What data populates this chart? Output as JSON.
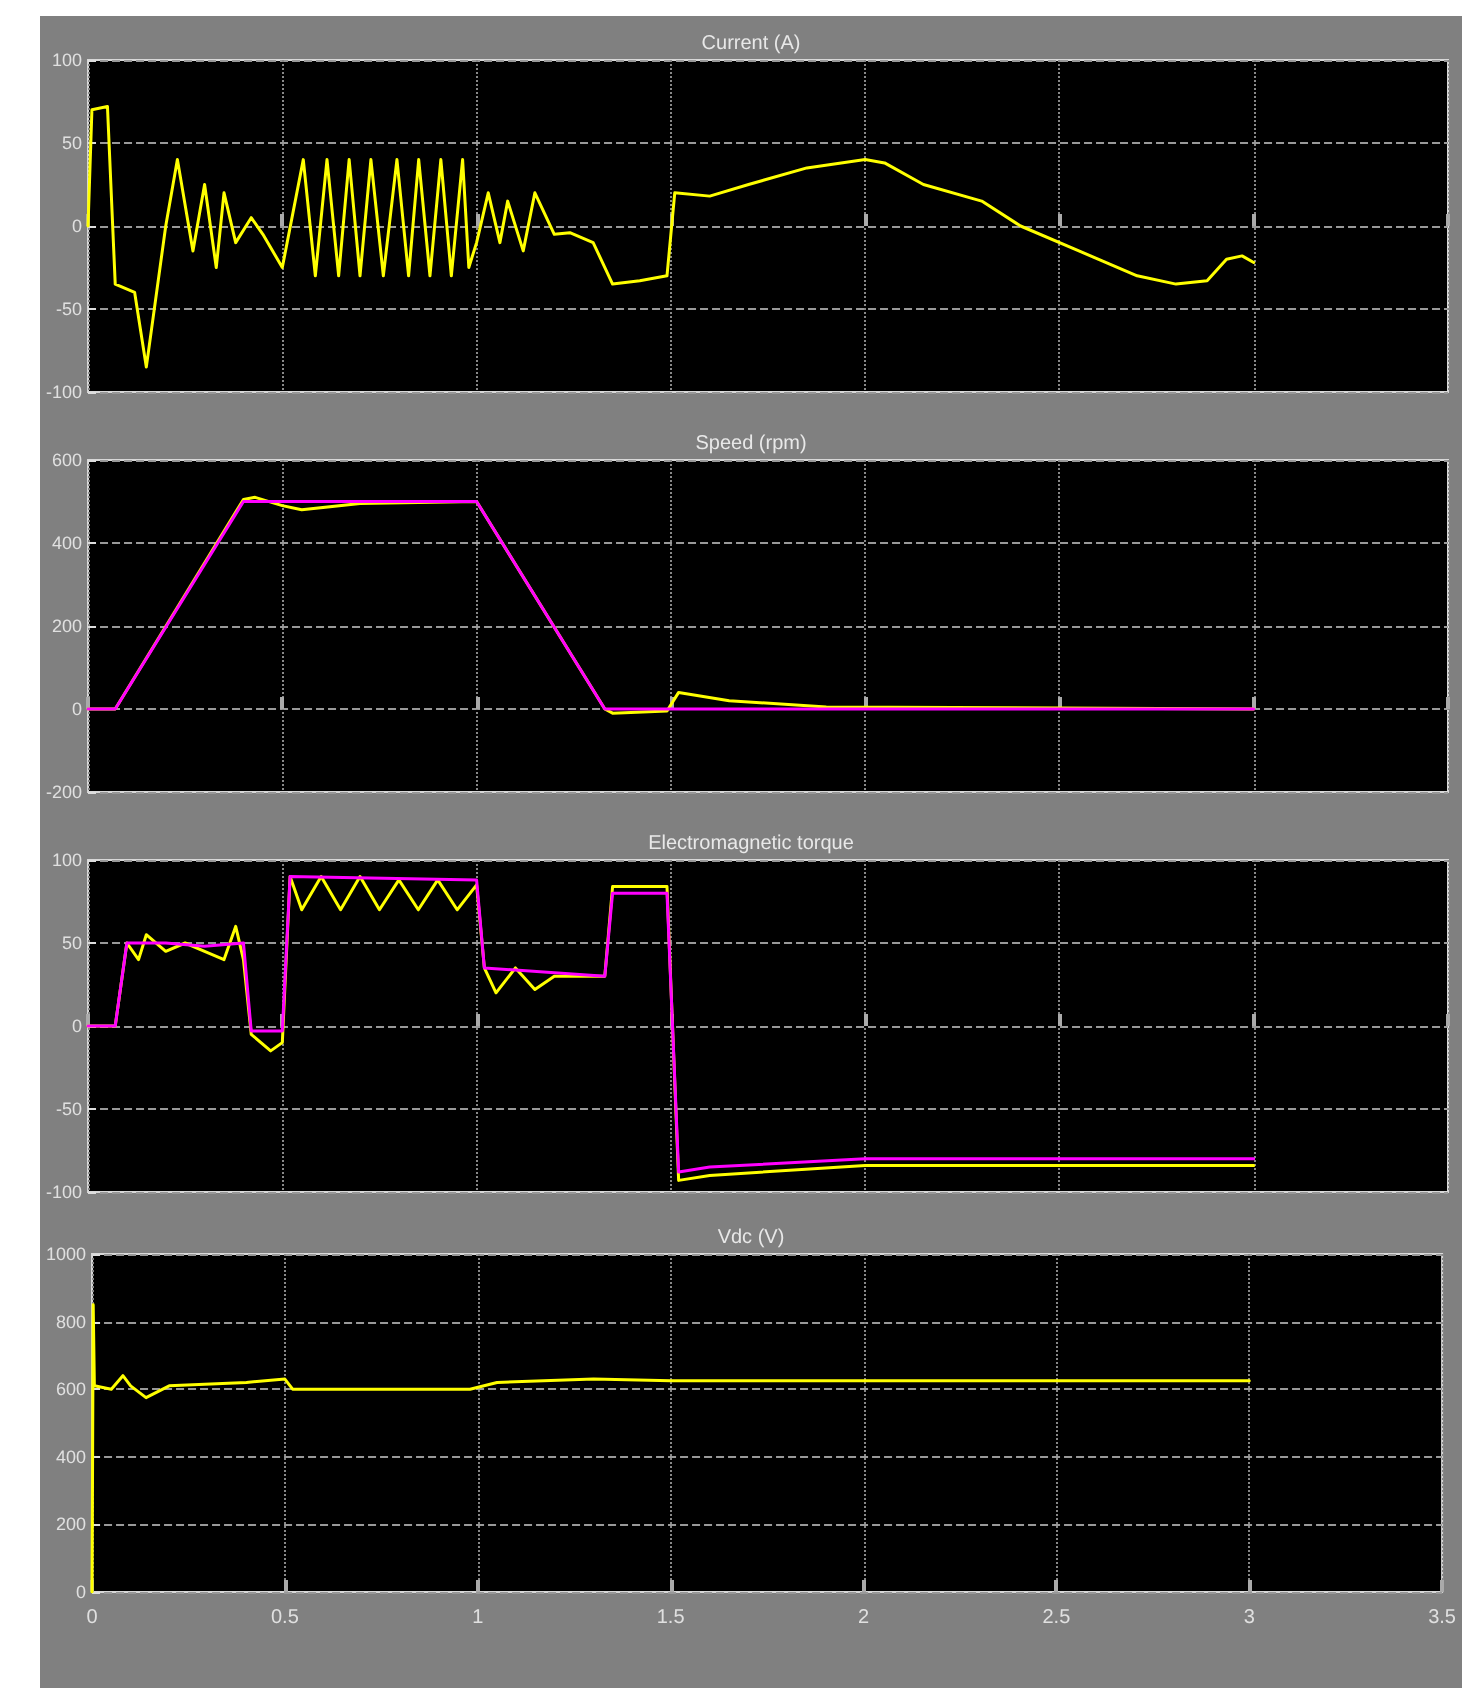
{
  "chart_data": [
    {
      "type": "line",
      "title": "Current (A)",
      "xlim": [
        0,
        3.5
      ],
      "xticks": [
        0,
        0.5,
        1,
        1.5,
        2,
        2.5,
        3,
        3.5
      ],
      "ylim": [
        -100,
        100
      ],
      "yticks": [
        -100,
        -50,
        0,
        50,
        100
      ],
      "grid": true,
      "marker": "none",
      "line_style": "solid",
      "tick_labels": "y",
      "series": [
        {
          "color": "#ffff00",
          "x": [
            0,
            0.01,
            0.05,
            0.07,
            0.12,
            0.15,
            0.2,
            0.23,
            0.27,
            0.3,
            0.33,
            0.35,
            0.38,
            0.42,
            0.45,
            0.5,
            0.554,
            0.585,
            0.615,
            0.645,
            0.672,
            0.7,
            0.728,
            0.76,
            0.795,
            0.825,
            0.851,
            0.88,
            0.908,
            0.935,
            0.964,
            0.98,
            1.0,
            1.03,
            1.06,
            1.08,
            1.12,
            1.15,
            1.2,
            1.24,
            1.3,
            1.35,
            1.42,
            1.49,
            1.51,
            1.6,
            1.7,
            1.85,
            2.0,
            2.05,
            2.15,
            2.3,
            2.4,
            2.55,
            2.7,
            2.8,
            2.88,
            2.93,
            2.97,
            3.0
          ],
          "values": [
            0,
            70,
            72,
            -35,
            -40,
            -85,
            0,
            40,
            -15,
            25,
            -25,
            20,
            -10,
            5,
            -5,
            -25,
            40,
            -30,
            40,
            -30,
            40,
            -30,
            40,
            -30,
            40,
            -30,
            40,
            -30,
            40,
            -30,
            40,
            -25,
            -10,
            20,
            -10,
            15,
            -15,
            20,
            -5,
            -4,
            -10,
            -35,
            -33,
            -30,
            20,
            18,
            25,
            35,
            40,
            38,
            25,
            15,
            0,
            -15,
            -30,
            -35,
            -33,
            -20,
            -18,
            -22
          ]
        }
      ]
    },
    {
      "type": "line",
      "title": "Speed (rpm)",
      "xlim": [
        0,
        3.5
      ],
      "xticks": [
        0,
        0.5,
        1,
        1.5,
        2,
        2.5,
        3,
        3.5
      ],
      "ylim": [
        -200,
        600
      ],
      "yticks": [
        -200,
        0,
        200,
        400,
        600
      ],
      "grid": true,
      "marker": "none",
      "line_style": "solid",
      "tick_labels": "y",
      "series": [
        {
          "color": "#ffff00",
          "x": [
            0,
            0.07,
            0.4,
            0.43,
            0.5,
            0.55,
            0.7,
            1.0,
            1.33,
            1.35,
            1.49,
            1.52,
            1.65,
            1.9,
            3.0
          ],
          "values": [
            0,
            0,
            505,
            510,
            490,
            480,
            495,
            500,
            0,
            -10,
            -5,
            40,
            20,
            5,
            0
          ]
        },
        {
          "color": "#ff00ff",
          "x": [
            0,
            0.07,
            0.4,
            1.0,
            1.33,
            3.0
          ],
          "values": [
            0,
            0,
            500,
            500,
            0,
            0
          ]
        }
      ]
    },
    {
      "type": "line",
      "title": "Electromagnetic torque",
      "xlim": [
        0,
        3.5
      ],
      "xticks": [
        0,
        0.5,
        1,
        1.5,
        2,
        2.5,
        3,
        3.5
      ],
      "ylim": [
        -100,
        100
      ],
      "yticks": [
        -100,
        -50,
        0,
        50,
        100
      ],
      "grid": true,
      "marker": "none",
      "line_style": "solid",
      "tick_labels": "y",
      "series": [
        {
          "color": "#ffff00",
          "x": [
            0,
            0.07,
            0.1,
            0.13,
            0.15,
            0.2,
            0.25,
            0.3,
            0.35,
            0.38,
            0.4,
            0.42,
            0.47,
            0.5,
            0.52,
            0.55,
            0.6,
            0.65,
            0.7,
            0.75,
            0.8,
            0.85,
            0.9,
            0.95,
            1.0,
            1.02,
            1.05,
            1.1,
            1.15,
            1.2,
            1.33,
            1.35,
            1.49,
            1.52,
            1.6,
            2.0,
            3.0
          ],
          "values": [
            0,
            0,
            50,
            40,
            55,
            45,
            50,
            45,
            40,
            60,
            40,
            -5,
            -15,
            -10,
            90,
            70,
            90,
            70,
            90,
            70,
            88,
            70,
            88,
            70,
            85,
            35,
            20,
            35,
            22,
            30,
            30,
            84,
            84,
            -93,
            -90,
            -84,
            -84
          ]
        },
        {
          "color": "#ff00ff",
          "x": [
            0,
            0.07,
            0.1,
            0.2,
            0.3,
            0.4,
            0.42,
            0.5,
            0.52,
            1.0,
            1.02,
            1.33,
            1.35,
            1.49,
            1.52,
            1.6,
            2.0,
            3.0
          ],
          "values": [
            0,
            0,
            50,
            50,
            48,
            50,
            -3,
            -3,
            90,
            88,
            35,
            30,
            80,
            80,
            -88,
            -85,
            -80,
            -80
          ]
        }
      ]
    },
    {
      "type": "line",
      "title": "Vdc (V)",
      "xlim": [
        0,
        3.5
      ],
      "xticks": [
        0,
        0.5,
        1,
        1.5,
        2,
        2.5,
        3,
        3.5
      ],
      "ylim": [
        0,
        1000
      ],
      "yticks": [
        0,
        200,
        400,
        600,
        800,
        1000
      ],
      "grid": true,
      "marker": "none",
      "line_style": "solid",
      "series": [
        {
          "color": "#ffff00",
          "x": [
            0,
            0.003,
            0.006,
            0.05,
            0.08,
            0.1,
            0.14,
            0.2,
            0.4,
            0.5,
            0.52,
            0.98,
            1.05,
            1.3,
            1.5,
            2.0,
            2.5,
            3.0
          ],
          "values": [
            0,
            850,
            610,
            600,
            640,
            610,
            575,
            610,
            620,
            630,
            600,
            600,
            620,
            630,
            625,
            625,
            625,
            625
          ]
        }
      ]
    }
  ]
}
